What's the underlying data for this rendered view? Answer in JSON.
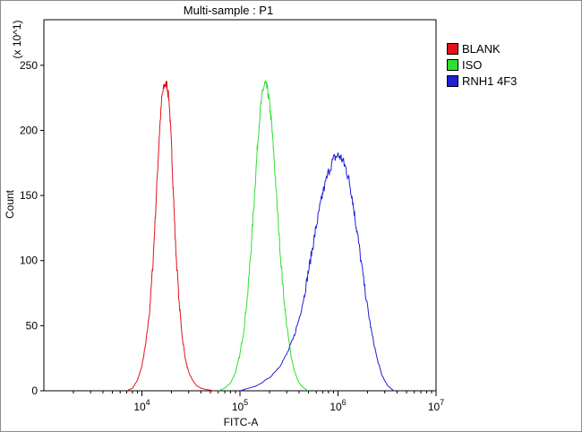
{
  "chart_data": {
    "type": "line",
    "title": "Multi-sample : P1",
    "xlabel": "FITC-A",
    "ylabel": "Count",
    "y_multiplier_label": "(x 10^1)",
    "xscale": "log",
    "xlim": [
      1000,
      10000000
    ],
    "ylim": [
      0,
      285
    ],
    "x_ticks": [
      {
        "base": "10",
        "exp": "4",
        "value": 10000
      },
      {
        "base": "10",
        "exp": "5",
        "value": 100000
      },
      {
        "base": "10",
        "exp": "6",
        "value": 1000000
      },
      {
        "base": "10",
        "exp": "7",
        "value": 10000000
      }
    ],
    "y_ticks": [
      "0",
      "50",
      "100",
      "150",
      "200",
      "250"
    ],
    "grid": false,
    "legend_position": "right",
    "series": [
      {
        "name": "BLANK",
        "color": "#e0141c",
        "x": [
          7000,
          8000,
          9000,
          10000,
          11000,
          12000,
          13000,
          14000,
          15000,
          16000,
          17000,
          18000,
          19000,
          20000,
          21000,
          22000,
          24000,
          26000,
          28000,
          30000,
          33000,
          36000,
          40000,
          45000,
          50000,
          55000
        ],
        "y": [
          0,
          2,
          8,
          19,
          37,
          62,
          100,
          148,
          195,
          226,
          235,
          235,
          222,
          188,
          150,
          113,
          67,
          39,
          23,
          14,
          8,
          4,
          2,
          1,
          0.5,
          0
        ]
      },
      {
        "name": "ISO",
        "color": "#2ee02e",
        "x": [
          60000,
          70000,
          80000,
          90000,
          100000,
          110000,
          120000,
          130000,
          140000,
          150000,
          160000,
          170000,
          180000,
          190000,
          200000,
          210000,
          220000,
          240000,
          260000,
          280000,
          300000,
          330000,
          360000,
          400000,
          450000,
          500000
        ],
        "y": [
          0,
          2,
          6,
          14,
          28,
          48,
          75,
          110,
          148,
          185,
          213,
          230,
          236,
          232,
          221,
          205,
          185,
          141,
          102,
          72,
          50,
          28,
          15,
          6,
          2,
          0
        ]
      },
      {
        "name": "RNH1 4F3",
        "color": "#1f1fd6",
        "x": [
          100000,
          150000,
          200000,
          250000,
          300000,
          350000,
          400000,
          450000,
          500000,
          550000,
          600000,
          650000,
          700000,
          800000,
          900000,
          1000000,
          1100000,
          1200000,
          1300000,
          1400000,
          1500000,
          1600000,
          1800000,
          2000000,
          2200000,
          2500000,
          2800000,
          3200000,
          3700000
        ],
        "y": [
          0,
          4,
          10,
          18,
          28,
          40,
          55,
          72,
          92,
          110,
          126,
          140,
          152,
          168,
          178,
          181,
          178,
          171,
          161,
          148,
          131,
          117,
          88,
          64,
          45,
          25,
          12,
          4,
          0
        ]
      }
    ]
  }
}
